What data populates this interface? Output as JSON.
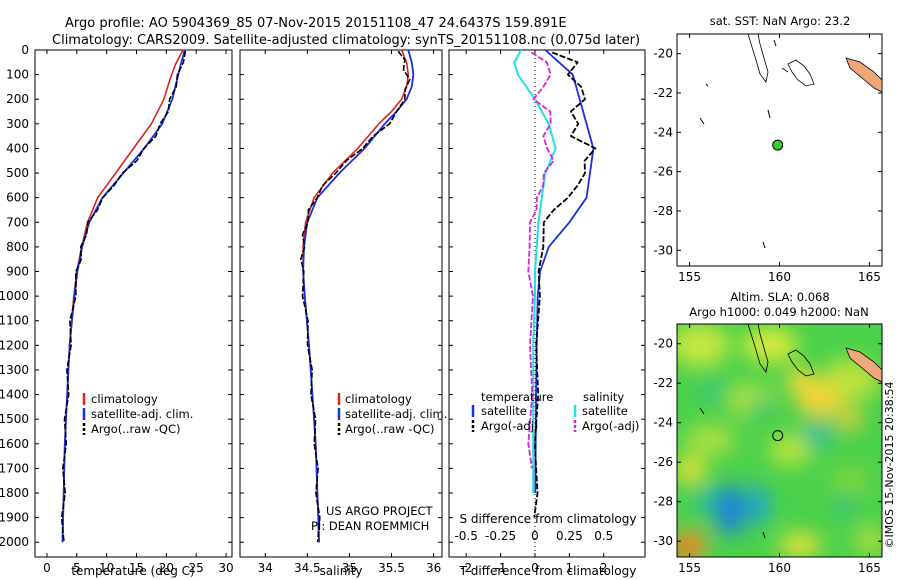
{
  "header": {
    "line1": "Argo profile: AO 5904369_85 07-Nov-2015 20151108_47 24.6437S 159.891E",
    "line2": "Climatology: CARS2009. Satellite-adjusted climatology: synTS_20151108.nc (0.075d later)"
  },
  "side_label": "©IMOS 15-Nov-2015 20:38:54",
  "colors": {
    "climatology": "#dd2222",
    "satellite": "#1a2fdd",
    "argo": "#000000",
    "sal_satellite": "#22e0e8",
    "sal_argo": "#e020e0"
  },
  "chart_data": [
    {
      "type": "line",
      "xlabel": "temperature (deg C)",
      "xlim": [
        -2,
        31
      ],
      "xticks": [
        0,
        5,
        10,
        15,
        20,
        25,
        30
      ],
      "ylim": [
        2060,
        0
      ],
      "yticks": [
        0,
        100,
        200,
        300,
        400,
        500,
        600,
        700,
        800,
        900,
        1000,
        1100,
        1200,
        1300,
        1400,
        1500,
        1600,
        1700,
        1800,
        1900,
        2000
      ],
      "legend": [
        "climatology",
        "satellite-adj. clim.",
        "Argo(..raw -QC)"
      ],
      "series": [
        {
          "name": "climatology",
          "depth": [
            0,
            60,
            120,
            200,
            300,
            400,
            500,
            600,
            700,
            800,
            900,
            1000,
            1200,
            1400,
            1600,
            1800,
            2000
          ],
          "values": [
            22.8,
            21.5,
            20.6,
            19.6,
            17.5,
            14.5,
            11.5,
            8.5,
            6.8,
            5.8,
            5.0,
            4.5,
            3.8,
            3.4,
            3.0,
            2.8,
            2.6
          ]
        },
        {
          "name": "satellite-adj. clim.",
          "depth": [
            0,
            60,
            120,
            200,
            300,
            400,
            500,
            600,
            700,
            800,
            900,
            1000,
            1200,
            1400,
            1600,
            1800,
            2000
          ],
          "values": [
            23.1,
            22.4,
            21.8,
            21.0,
            19.3,
            16.3,
            12.8,
            9.3,
            7.1,
            5.9,
            5.1,
            4.6,
            3.8,
            3.4,
            3.0,
            2.8,
            2.6
          ]
        },
        {
          "name": "Argo(..raw -QC)",
          "depth": [
            5,
            50,
            100,
            150,
            200,
            250,
            300,
            350,
            400,
            450,
            500,
            550,
            600,
            650,
            700,
            750,
            800,
            850,
            900,
            1000,
            1100,
            1200,
            1300,
            1400,
            1500,
            1600,
            1700,
            1800,
            1900,
            2000
          ],
          "values": [
            23.2,
            22.6,
            22.1,
            21.4,
            20.8,
            20.1,
            19.2,
            18.0,
            16.5,
            14.8,
            12.9,
            11.0,
            9.6,
            8.2,
            7.1,
            6.4,
            5.9,
            5.5,
            5.1,
            4.6,
            4.1,
            3.8,
            3.6,
            3.4,
            3.2,
            3.0,
            2.9,
            2.8,
            2.7,
            2.6
          ]
        }
      ]
    },
    {
      "type": "line",
      "xlabel": "salinity",
      "xlim": [
        33.7,
        36.1
      ],
      "xticks": [
        34,
        34.5,
        35,
        35.5,
        36
      ],
      "ylim": [
        2060,
        0
      ],
      "legend": [
        "climatology",
        "satellite-adj. clim.",
        "Argo(..raw -QC)"
      ],
      "credit1": "US ARGO PROJECT",
      "credit2": "PI: DEAN ROEMMICH",
      "series": [
        {
          "name": "climatology",
          "depth": [
            0,
            50,
            100,
            150,
            200,
            250,
            300,
            400,
            500,
            600,
            700,
            800,
            900,
            1000,
            1200,
            1400,
            1600,
            1800,
            2000
          ],
          "values": [
            35.62,
            35.68,
            35.7,
            35.68,
            35.62,
            35.5,
            35.35,
            35.1,
            34.8,
            34.58,
            34.48,
            34.45,
            34.45,
            34.47,
            34.52,
            34.56,
            34.6,
            34.62,
            34.64
          ]
        },
        {
          "name": "satellite-adj. clim.",
          "depth": [
            0,
            50,
            100,
            150,
            200,
            250,
            300,
            400,
            500,
            600,
            700,
            800,
            900,
            1000,
            1200,
            1400,
            1600,
            1800,
            2000
          ],
          "values": [
            35.7,
            35.74,
            35.76,
            35.74,
            35.68,
            35.56,
            35.42,
            35.18,
            34.88,
            34.62,
            34.5,
            34.46,
            34.45,
            34.47,
            34.52,
            34.56,
            34.6,
            34.62,
            34.64
          ]
        },
        {
          "name": "Argo(..raw -QC)",
          "depth": [
            5,
            40,
            80,
            120,
            160,
            200,
            250,
            300,
            350,
            400,
            450,
            500,
            550,
            600,
            650,
            700,
            750,
            800,
            850,
            900,
            1000,
            1100,
            1200,
            1300,
            1400,
            1500,
            1600,
            1700,
            1800,
            1900,
            2000
          ],
          "values": [
            35.58,
            35.64,
            35.66,
            35.7,
            35.68,
            35.64,
            35.58,
            35.46,
            35.3,
            35.14,
            34.98,
            34.82,
            34.7,
            34.6,
            34.53,
            34.49,
            34.46,
            34.45,
            34.44,
            34.44,
            34.46,
            34.49,
            34.52,
            34.54,
            34.56,
            34.58,
            34.6,
            34.61,
            34.62,
            34.63,
            34.64
          ]
        }
      ]
    },
    {
      "type": "line",
      "xlabel_top": "S difference from climatology",
      "xlabel": "T difference from climatology",
      "xlim": [
        -2.5,
        3.2
      ],
      "xticks_T": [
        -2,
        -1,
        0,
        1,
        2
      ],
      "xticks_S": [
        {
          "pos": -2,
          "label": "-0.5"
        },
        {
          "pos": -1,
          "label": "-0.25"
        },
        {
          "pos": 0,
          "label": "0"
        },
        {
          "pos": 1,
          "label": "0.25"
        },
        {
          "pos": 2,
          "label": "0.5"
        }
      ],
      "ylim": [
        2060,
        0
      ],
      "legend": {
        "temperature_heading": "temperature",
        "salinity_heading": "salinity",
        "satellite": "satellite",
        "argo": "Argo(-adj)"
      },
      "series": [
        {
          "name": "temperature satellite",
          "depth": [
            0,
            50,
            100,
            200,
            300,
            400,
            500,
            600,
            700,
            800,
            900,
            1000,
            1200,
            1400,
            1600,
            1800
          ],
          "values": [
            0.3,
            0.7,
            1.1,
            1.3,
            1.5,
            1.7,
            1.6,
            1.5,
            1.0,
            0.4,
            0.15,
            0.08,
            0.05,
            0.03,
            0.02,
            0.01
          ]
        },
        {
          "name": "temperature Argo(-adj)",
          "depth": [
            10,
            50,
            100,
            150,
            200,
            250,
            300,
            350,
            400,
            450,
            500,
            550,
            600,
            650,
            700,
            800,
            900,
            1000,
            1200,
            1400,
            1600,
            1800,
            1900
          ],
          "values": [
            0.5,
            1.2,
            1.0,
            1.3,
            1.5,
            1.0,
            1.3,
            1.0,
            1.8,
            1.4,
            1.5,
            1.2,
            1.0,
            0.5,
            0.3,
            0.2,
            0.15,
            0.1,
            0.08,
            0.05,
            0.04,
            0.03,
            0.02
          ]
        },
        {
          "name": "salinity satellite",
          "depth": [
            0,
            50,
            100,
            200,
            300,
            400,
            500,
            600,
            700,
            800,
            900,
            1000,
            1200,
            1400,
            1600,
            1800
          ],
          "values": [
            -0.4,
            -0.6,
            -0.5,
            0.0,
            0.4,
            0.6,
            0.3,
            0.2,
            0.1,
            0.05,
            0.0,
            0.0,
            -0.05,
            -0.05,
            -0.05,
            -0.05
          ]
        },
        {
          "name": "salinity Argo(-adj)",
          "depth": [
            10,
            50,
            100,
            150,
            200,
            250,
            300,
            350,
            400,
            450,
            500,
            550,
            600,
            650,
            700,
            800,
            900,
            1000,
            1200,
            1400,
            1600,
            1700
          ],
          "values": [
            -0.1,
            0.3,
            0.5,
            0.2,
            0.0,
            0.4,
            0.5,
            0.2,
            0.4,
            0.5,
            0.3,
            0.2,
            0.1,
            0.0,
            -0.1,
            -0.2,
            -0.15,
            -0.1,
            -0.1,
            -0.12,
            -0.15,
            -0.13
          ]
        }
      ]
    },
    {
      "type": "map",
      "title": "sat. SST: NaN Argo: 23.2",
      "xticks": [
        155,
        160,
        165
      ],
      "yticks": [
        -20,
        -22,
        -24,
        -26,
        -28,
        -30
      ],
      "xlim": [
        154.3,
        165.7
      ],
      "ylim": [
        -30.8,
        -19.0
      ],
      "argo_position": {
        "lon": 159.9,
        "lat": -24.65
      }
    },
    {
      "type": "heatmap",
      "title_line1": "Altim. SLA: 0.068",
      "title_line2": "Argo h1000: 0.049 h2000: NaN",
      "xticks": [
        155,
        160,
        165
      ],
      "yticks": [
        -20,
        -22,
        -24,
        -26,
        -28,
        -30
      ],
      "xlim": [
        154.3,
        165.7
      ],
      "ylim": [
        -30.8,
        -19.0
      ],
      "argo_position": {
        "lon": 159.9,
        "lat": -24.65
      }
    }
  ]
}
